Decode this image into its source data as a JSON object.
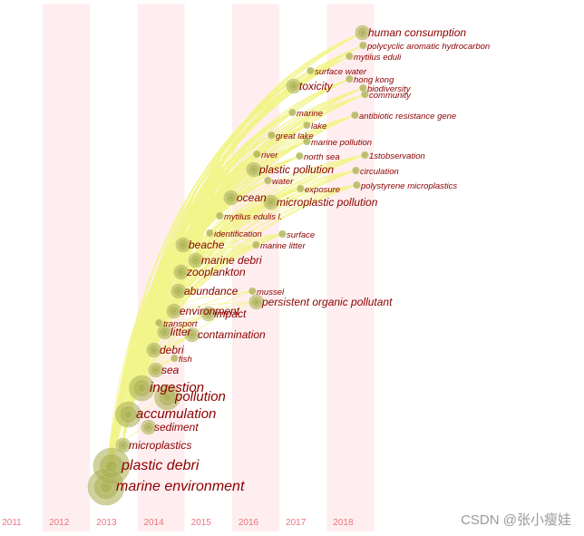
{
  "timeline": {
    "years": [
      "2011",
      "2012",
      "2013",
      "2014",
      "2015",
      "2016",
      "2017",
      "2018"
    ],
    "highlight_years": [
      "2012",
      "2014",
      "2016",
      "2018"
    ]
  },
  "colors": {
    "band": "#ffeef0",
    "year_label": "#e8747e",
    "keyword": "#8b0000",
    "node": "#a8ad4e",
    "link": "#f2f58a"
  },
  "keywords": [
    {
      "label": "marine environment",
      "year": 2013,
      "size": "xl"
    },
    {
      "label": "plastic debri",
      "year": 2013,
      "size": "xl"
    },
    {
      "label": "microplastics",
      "year": 2013,
      "size": "m"
    },
    {
      "label": "sediment",
      "year": 2014,
      "size": "m"
    },
    {
      "label": "accumulation",
      "year": 2014,
      "size": "l"
    },
    {
      "label": "pollution",
      "year": 2014,
      "size": "l"
    },
    {
      "label": "ingestion",
      "year": 2014,
      "size": "l"
    },
    {
      "label": "sea",
      "year": 2014,
      "size": "m"
    },
    {
      "label": "fish",
      "year": 2014,
      "size": "s"
    },
    {
      "label": "debri",
      "year": 2014,
      "size": "m"
    },
    {
      "label": "contamination",
      "year": 2014,
      "size": "m"
    },
    {
      "label": "litter",
      "year": 2014,
      "size": "m"
    },
    {
      "label": "transport",
      "year": 2014,
      "size": "s"
    },
    {
      "label": "environment",
      "year": 2014,
      "size": "m"
    },
    {
      "label": "impact",
      "year": 2015,
      "size": "m"
    },
    {
      "label": "persistent organic pollutant",
      "year": 2015,
      "size": "m"
    },
    {
      "label": "abundance",
      "year": 2015,
      "size": "m"
    },
    {
      "label": "mussel",
      "year": 2016,
      "size": "s"
    },
    {
      "label": "zooplankton",
      "year": 2015,
      "size": "m"
    },
    {
      "label": "marine debri",
      "year": 2015,
      "size": "m"
    },
    {
      "label": "beache",
      "year": 2015,
      "size": "m"
    },
    {
      "label": "marine litter",
      "year": 2016,
      "size": "s"
    },
    {
      "label": "identification",
      "year": 2015,
      "size": "s"
    },
    {
      "label": "surface",
      "year": 2016,
      "size": "s"
    },
    {
      "label": "mytilus edulis l.",
      "year": 2015,
      "size": "s"
    },
    {
      "label": "ocean",
      "year": 2016,
      "size": "m"
    },
    {
      "label": "microplastic pollution",
      "year": 2016,
      "size": "m"
    },
    {
      "label": "exposure",
      "year": 2017,
      "size": "s"
    },
    {
      "label": "polystyrene microplastics",
      "year": 2018,
      "size": "s"
    },
    {
      "label": "water",
      "year": 2016,
      "size": "s"
    },
    {
      "label": "plastic pollution",
      "year": 2016,
      "size": "m"
    },
    {
      "label": "circulation",
      "year": 2018,
      "size": "s"
    },
    {
      "label": "river",
      "year": 2016,
      "size": "s"
    },
    {
      "label": "north sea",
      "year": 2017,
      "size": "s"
    },
    {
      "label": "1stobservation",
      "year": 2018,
      "size": "s"
    },
    {
      "label": "marine pollution",
      "year": 2017,
      "size": "s"
    },
    {
      "label": "great lake",
      "year": 2016,
      "size": "s"
    },
    {
      "label": "lake",
      "year": 2017,
      "size": "s"
    },
    {
      "label": "marine",
      "year": 2016,
      "size": "s"
    },
    {
      "label": "antibiotic resistance gene",
      "year": 2018,
      "size": "s"
    },
    {
      "label": "toxicity",
      "year": 2017,
      "size": "m"
    },
    {
      "label": "community",
      "year": 2018,
      "size": "s"
    },
    {
      "label": "biodiversity",
      "year": 2018,
      "size": "s"
    },
    {
      "label": "hong kong",
      "year": 2018,
      "size": "s"
    },
    {
      "label": "surface water",
      "year": 2017,
      "size": "s"
    },
    {
      "label": "mytilus eduli",
      "year": 2018,
      "size": "s"
    },
    {
      "label": "polycyclic aromatic hydrocarbon",
      "year": 2018,
      "size": "s"
    },
    {
      "label": "human consumption",
      "year": 2018,
      "size": "m"
    }
  ],
  "watermark": "CSDN @张小瘦娃"
}
